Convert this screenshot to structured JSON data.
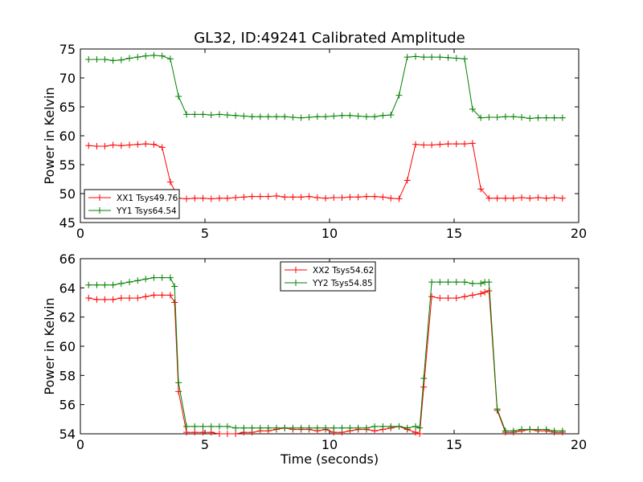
{
  "figure": {
    "title": "GL32, ID:49241 Calibrated Amplitude"
  },
  "colors": {
    "red": "#ff0000",
    "green": "#008000",
    "axes": "#000000",
    "background": "#ffffff"
  },
  "chart_data": [
    {
      "type": "line",
      "title": "GL32, ID:49241 Calibrated Amplitude",
      "xlabel": "",
      "ylabel": "Power in Kelvin",
      "xlim": [
        0,
        20
      ],
      "ylim": [
        45,
        75
      ],
      "xticks": [
        "0",
        "5",
        "10",
        "15",
        "20"
      ],
      "yticks": [
        "45",
        "50",
        "55",
        "60",
        "65",
        "70",
        "75"
      ],
      "grid": false,
      "legend": "lower-left",
      "marker": "plus",
      "x": [
        0.33,
        0.66,
        0.98,
        1.31,
        1.64,
        1.97,
        2.3,
        2.62,
        2.95,
        3.28,
        3.61,
        3.94,
        4.26,
        4.59,
        4.92,
        5.25,
        5.58,
        5.9,
        6.23,
        6.56,
        6.89,
        7.22,
        7.54,
        7.87,
        8.2,
        8.53,
        8.86,
        9.18,
        9.51,
        9.84,
        10.17,
        10.5,
        10.82,
        11.15,
        11.48,
        11.81,
        12.14,
        12.46,
        12.79,
        13.12,
        13.45,
        13.78,
        14.1,
        14.43,
        14.76,
        15.09,
        15.42,
        15.74,
        16.07,
        16.4,
        16.73,
        17.06,
        17.38,
        17.71,
        18.04,
        18.37,
        18.7,
        19.02,
        19.35
      ],
      "series": [
        {
          "name": "XX1 Tsys49.76",
          "color": "#ff0000",
          "values": [
            58.3,
            58.2,
            58.2,
            58.4,
            58.3,
            58.4,
            58.5,
            58.6,
            58.5,
            58.0,
            52.0,
            49.2,
            49.1,
            49.2,
            49.2,
            49.1,
            49.2,
            49.2,
            49.3,
            49.4,
            49.5,
            49.5,
            49.5,
            49.6,
            49.4,
            49.4,
            49.4,
            49.5,
            49.3,
            49.2,
            49.3,
            49.3,
            49.4,
            49.4,
            49.5,
            49.5,
            49.4,
            49.2,
            49.1,
            52.3,
            58.5,
            58.4,
            58.4,
            58.5,
            58.6,
            58.6,
            58.6,
            58.7,
            50.8,
            49.2,
            49.2,
            49.2,
            49.2,
            49.3,
            49.2,
            49.3,
            49.2,
            49.3,
            49.2
          ]
        },
        {
          "name": "YY1 Tsys64.54",
          "color": "#008000",
          "values": [
            73.2,
            73.2,
            73.2,
            73.0,
            73.1,
            73.4,
            73.6,
            73.8,
            73.9,
            73.8,
            73.3,
            66.8,
            63.7,
            63.7,
            63.7,
            63.6,
            63.7,
            63.6,
            63.5,
            63.4,
            63.3,
            63.3,
            63.3,
            63.3,
            63.3,
            63.2,
            63.1,
            63.2,
            63.3,
            63.3,
            63.4,
            63.5,
            63.5,
            63.4,
            63.3,
            63.3,
            63.5,
            63.6,
            67.0,
            73.6,
            73.7,
            73.6,
            73.6,
            73.6,
            73.5,
            73.4,
            73.3,
            64.6,
            63.1,
            63.2,
            63.2,
            63.3,
            63.3,
            63.2,
            63.0,
            63.1,
            63.1,
            63.1,
            63.1
          ]
        }
      ]
    },
    {
      "type": "line",
      "title": "",
      "xlabel": "Time (seconds)",
      "ylabel": "Power in Kelvin",
      "xlim": [
        0,
        20
      ],
      "ylim": [
        54,
        66
      ],
      "xticks": [
        "0",
        "5",
        "10",
        "15",
        "20"
      ],
      "yticks": [
        "54",
        "56",
        "58",
        "60",
        "62",
        "64",
        "66"
      ],
      "grid": false,
      "legend": "top-center",
      "marker": "plus",
      "x": [
        0.33,
        0.66,
        0.98,
        1.31,
        1.64,
        1.97,
        2.3,
        2.62,
        2.95,
        3.28,
        3.61,
        3.78,
        3.94,
        4.26,
        4.59,
        4.92,
        5.25,
        5.58,
        5.9,
        6.23,
        6.56,
        6.89,
        7.22,
        7.54,
        7.87,
        8.2,
        8.53,
        8.86,
        9.18,
        9.51,
        9.84,
        10.17,
        10.5,
        10.82,
        11.15,
        11.48,
        11.81,
        12.14,
        12.46,
        12.79,
        13.12,
        13.45,
        13.62,
        13.78,
        14.1,
        14.43,
        14.76,
        15.09,
        15.42,
        15.74,
        16.07,
        16.23,
        16.4,
        16.73,
        17.06,
        17.38,
        17.71,
        18.04,
        18.37,
        18.7,
        19.02,
        19.35
      ],
      "series": [
        {
          "name": "XX2 Tsys54.62",
          "color": "#ff0000",
          "values": [
            63.3,
            63.2,
            63.2,
            63.2,
            63.3,
            63.3,
            63.3,
            63.4,
            63.5,
            63.5,
            63.5,
            63.0,
            56.9,
            54.1,
            54.1,
            54.1,
            54.1,
            54.0,
            54.0,
            54.0,
            54.1,
            54.1,
            54.2,
            54.2,
            54.3,
            54.4,
            54.3,
            54.3,
            54.3,
            54.2,
            54.3,
            54.1,
            54.1,
            54.2,
            54.3,
            54.3,
            54.2,
            54.3,
            54.4,
            54.5,
            54.3,
            54.1,
            54.0,
            57.2,
            63.4,
            63.3,
            63.3,
            63.3,
            63.4,
            63.5,
            63.6,
            63.7,
            63.8,
            55.6,
            54.1,
            54.1,
            54.2,
            54.3,
            54.2,
            54.2,
            54.1,
            54.1
          ]
        },
        {
          "name": "YY2 Tsys54.85",
          "color": "#008000",
          "values": [
            64.2,
            64.2,
            64.2,
            64.2,
            64.3,
            64.4,
            64.5,
            64.6,
            64.7,
            64.7,
            64.7,
            64.1,
            57.5,
            54.5,
            54.5,
            54.5,
            54.5,
            54.5,
            54.5,
            54.4,
            54.4,
            54.4,
            54.4,
            54.4,
            54.4,
            54.4,
            54.4,
            54.4,
            54.4,
            54.4,
            54.4,
            54.4,
            54.4,
            54.4,
            54.4,
            54.4,
            54.5,
            54.5,
            54.5,
            54.5,
            54.4,
            54.5,
            54.4,
            57.8,
            64.4,
            64.4,
            64.4,
            64.4,
            64.4,
            64.3,
            64.3,
            64.4,
            64.4,
            55.7,
            54.2,
            54.2,
            54.3,
            54.3,
            54.3,
            54.3,
            54.2,
            54.2
          ]
        }
      ]
    }
  ]
}
